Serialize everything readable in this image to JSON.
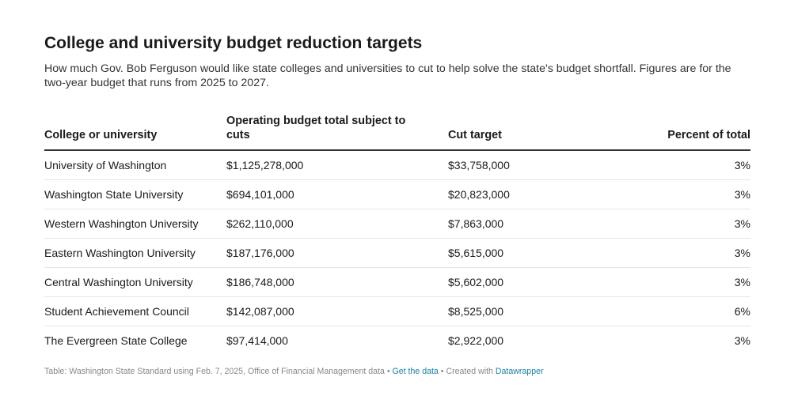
{
  "chart_data": {
    "type": "table",
    "title": "College and university budget reduction targets",
    "subtitle": "How much Gov. Bob Ferguson would like state colleges and universities to cut to help solve the state's budget shortfall. Figures are for the two-year budget that runs from 2025 to 2027.",
    "columns": [
      "College or university",
      "Operating budget total subject to cuts",
      "Cut target",
      "Percent of total"
    ],
    "rows": [
      [
        "University of Washington",
        "$1,125,278,000",
        "$33,758,000",
        "3%"
      ],
      [
        "Washington State University",
        "$694,101,000",
        "$20,823,000",
        "3%"
      ],
      [
        "Western Washington University",
        "$262,110,000",
        "$7,863,000",
        "3%"
      ],
      [
        "Eastern Washington University",
        "$187,176,000",
        "$5,615,000",
        "3%"
      ],
      [
        "Central Washington University",
        "$186,748,000",
        "$5,602,000",
        "3%"
      ],
      [
        "Student Achievement Council",
        "$142,087,000",
        "$8,525,000",
        "6%"
      ],
      [
        "The Evergreen State College",
        "$97,414,000",
        "$2,922,000",
        "3%"
      ]
    ]
  },
  "footer": {
    "source": "Table: Washington State Standard using Feb. 7, 2025, Office of Financial Management data",
    "separator": " • ",
    "get_data_label": "Get the data",
    "created_with": "Created with ",
    "tool_label": "Datawrapper"
  }
}
